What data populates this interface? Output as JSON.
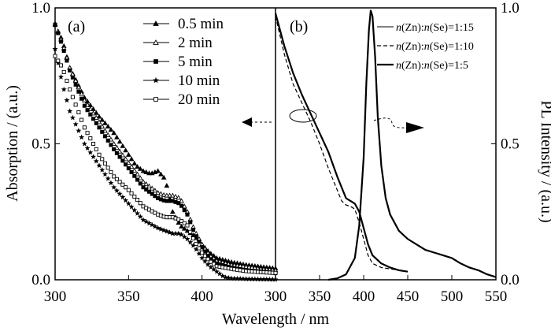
{
  "chart_data": [
    {
      "panel": "(a)",
      "type": "scatter",
      "xlabel": "Wavelength / nm",
      "ylabel": "Absorption / (a.u.)",
      "xlim": [
        300,
        450
      ],
      "ylim": [
        0,
        1.0
      ],
      "x_ticks": [
        "300",
        "350",
        "400"
      ],
      "y_ticks": [
        "0.0",
        "0.5",
        "1.0"
      ],
      "legend_position": "top-right",
      "series": [
        {
          "name": "0.5 min",
          "marker": "triangle-filled",
          "x": [
            298,
            305,
            310,
            320,
            330,
            340,
            350,
            355,
            360,
            365,
            370,
            375,
            380,
            385,
            390,
            395,
            400,
            405,
            410,
            420,
            430,
            440,
            450
          ],
          "y": [
            0.96,
            0.88,
            0.78,
            0.67,
            0.6,
            0.54,
            0.46,
            0.42,
            0.4,
            0.39,
            0.4,
            0.37,
            0.25,
            0.2,
            0.18,
            0.16,
            0.13,
            0.1,
            0.08,
            0.065,
            0.055,
            0.048,
            0.042
          ]
        },
        {
          "name": "2  min",
          "marker": "triangle-open",
          "x": [
            298,
            305,
            310,
            320,
            330,
            340,
            350,
            360,
            370,
            375,
            380,
            385,
            390,
            395,
            400,
            405,
            410,
            420,
            430,
            440,
            450
          ],
          "y": [
            0.97,
            0.87,
            0.78,
            0.66,
            0.58,
            0.5,
            0.43,
            0.36,
            0.32,
            0.31,
            0.31,
            0.3,
            0.25,
            0.18,
            0.13,
            0.09,
            0.07,
            0.055,
            0.048,
            0.04,
            0.035
          ]
        },
        {
          "name": "5  min",
          "marker": "square-filled",
          "x": [
            298,
            305,
            310,
            320,
            330,
            340,
            350,
            360,
            370,
            375,
            380,
            385,
            390,
            395,
            400,
            405,
            410,
            420,
            430,
            440,
            450
          ],
          "y": [
            0.97,
            0.86,
            0.77,
            0.64,
            0.56,
            0.48,
            0.41,
            0.34,
            0.3,
            0.29,
            0.29,
            0.28,
            0.24,
            0.17,
            0.12,
            0.08,
            0.06,
            0.045,
            0.035,
            0.03,
            0.025
          ]
        },
        {
          "name": "10 min",
          "marker": "star-filled",
          "x": [
            298,
            305,
            310,
            320,
            330,
            340,
            350,
            360,
            370,
            375,
            380,
            385,
            390,
            395,
            400,
            405,
            410,
            415,
            420,
            430,
            440,
            450
          ],
          "y": [
            0.9,
            0.72,
            0.62,
            0.5,
            0.42,
            0.34,
            0.28,
            0.22,
            0.19,
            0.18,
            0.17,
            0.17,
            0.15,
            0.12,
            0.08,
            0.05,
            0.03,
            0.01,
            0.005,
            0.003,
            0.002,
            0.001
          ]
        },
        {
          "name": "20 min",
          "marker": "square-open",
          "x": [
            298,
            305,
            310,
            320,
            330,
            340,
            350,
            360,
            370,
            375,
            380,
            385,
            390,
            395,
            400,
            405,
            410,
            420,
            430,
            440,
            450
          ],
          "y": [
            0.84,
            0.78,
            0.7,
            0.56,
            0.46,
            0.38,
            0.33,
            0.27,
            0.24,
            0.23,
            0.23,
            0.22,
            0.2,
            0.14,
            0.1,
            0.07,
            0.05,
            0.04,
            0.032,
            0.028,
            0.025
          ]
        }
      ]
    },
    {
      "panel": "(b)",
      "type": "line",
      "xlabel": "Wavelength / nm",
      "y2label": "PL Intensity / (a.u.)",
      "xlim": [
        300,
        550
      ],
      "ylim": [
        0,
        1.0
      ],
      "x_ticks": [
        "300",
        "350",
        "400",
        "450",
        "500",
        "550"
      ],
      "y2_ticks": [
        "0.0",
        "0.5",
        "1.0"
      ],
      "legend_position": "top-right",
      "series": [
        {
          "name": "n(Zn):n(Se)=1:15",
          "style": "thin-solid",
          "kind": "absorption",
          "x": [
            300,
            310,
            320,
            330,
            340,
            350,
            360,
            370,
            380,
            385,
            390,
            395,
            400,
            405,
            410,
            420,
            430,
            440,
            450
          ],
          "y": [
            0.98,
            0.86,
            0.76,
            0.68,
            0.61,
            0.54,
            0.47,
            0.38,
            0.3,
            0.29,
            0.28,
            0.25,
            0.19,
            0.13,
            0.09,
            0.06,
            0.045,
            0.035,
            0.03
          ]
        },
        {
          "name": "n(Zn):n(Se)=1:10",
          "style": "dashed",
          "kind": "absorption",
          "x": [
            300,
            310,
            320,
            330,
            340,
            350,
            360,
            370,
            375,
            380,
            385,
            390,
            395,
            400,
            405,
            410,
            420,
            430,
            440,
            450
          ],
          "y": [
            0.97,
            0.83,
            0.72,
            0.65,
            0.58,
            0.5,
            0.41,
            0.33,
            0.29,
            0.275,
            0.27,
            0.26,
            0.21,
            0.15,
            0.09,
            0.06,
            0.045,
            0.04,
            0.035,
            0.03
          ]
        },
        {
          "name": "n(Zn):n(Se)=1:5",
          "style": "thick-solid",
          "kind": "absorption",
          "x": [
            300,
            310,
            320,
            330,
            340,
            350,
            360,
            370,
            380,
            385,
            390,
            395,
            400,
            405,
            410,
            420,
            430,
            440,
            450
          ],
          "y": [
            0.98,
            0.86,
            0.76,
            0.68,
            0.61,
            0.54,
            0.47,
            0.38,
            0.3,
            0.29,
            0.28,
            0.25,
            0.19,
            0.13,
            0.09,
            0.06,
            0.045,
            0.035,
            0.03
          ]
        },
        {
          "name": "n(Zn):n(Se)=1:15",
          "style": "thin-solid",
          "kind": "PL",
          "x": [
            360,
            370,
            380,
            390,
            395,
            400,
            403,
            406,
            408,
            410,
            413,
            416,
            420,
            425,
            430,
            440,
            450,
            460,
            470,
            480,
            490,
            500,
            510,
            520,
            530,
            540,
            550
          ],
          "y": [
            0,
            0.005,
            0.02,
            0.08,
            0.2,
            0.45,
            0.72,
            0.92,
            0.99,
            0.97,
            0.82,
            0.6,
            0.42,
            0.3,
            0.24,
            0.18,
            0.15,
            0.13,
            0.11,
            0.1,
            0.09,
            0.08,
            0.06,
            0.045,
            0.035,
            0.02,
            0.01
          ]
        },
        {
          "name": "n(Zn):n(Se)=1:10",
          "style": "dashed",
          "kind": "PL",
          "x": [
            360,
            370,
            380,
            390,
            395,
            400,
            403,
            406,
            408,
            410,
            413,
            416,
            420,
            425,
            430,
            440,
            450,
            460,
            470,
            480,
            490,
            500,
            510,
            520,
            530,
            540,
            550
          ],
          "y": [
            0,
            0.005,
            0.02,
            0.08,
            0.2,
            0.45,
            0.72,
            0.92,
            0.99,
            0.97,
            0.82,
            0.6,
            0.42,
            0.3,
            0.24,
            0.18,
            0.15,
            0.13,
            0.11,
            0.1,
            0.09,
            0.08,
            0.06,
            0.045,
            0.035,
            0.02,
            0.01
          ]
        },
        {
          "name": "n(Zn):n(Se)=1:5",
          "style": "thick-solid",
          "kind": "PL",
          "x": [
            360,
            370,
            380,
            390,
            395,
            400,
            403,
            406,
            408,
            410,
            413,
            416,
            420,
            425,
            430,
            440,
            450,
            460,
            470,
            480,
            490,
            500,
            510,
            520,
            530,
            540,
            550
          ],
          "y": [
            0,
            0.005,
            0.02,
            0.08,
            0.2,
            0.45,
            0.72,
            0.92,
            0.99,
            0.97,
            0.82,
            0.6,
            0.42,
            0.3,
            0.24,
            0.18,
            0.15,
            0.13,
            0.11,
            0.1,
            0.09,
            0.08,
            0.06,
            0.045,
            0.035,
            0.02,
            0.01
          ]
        }
      ]
    }
  ]
}
